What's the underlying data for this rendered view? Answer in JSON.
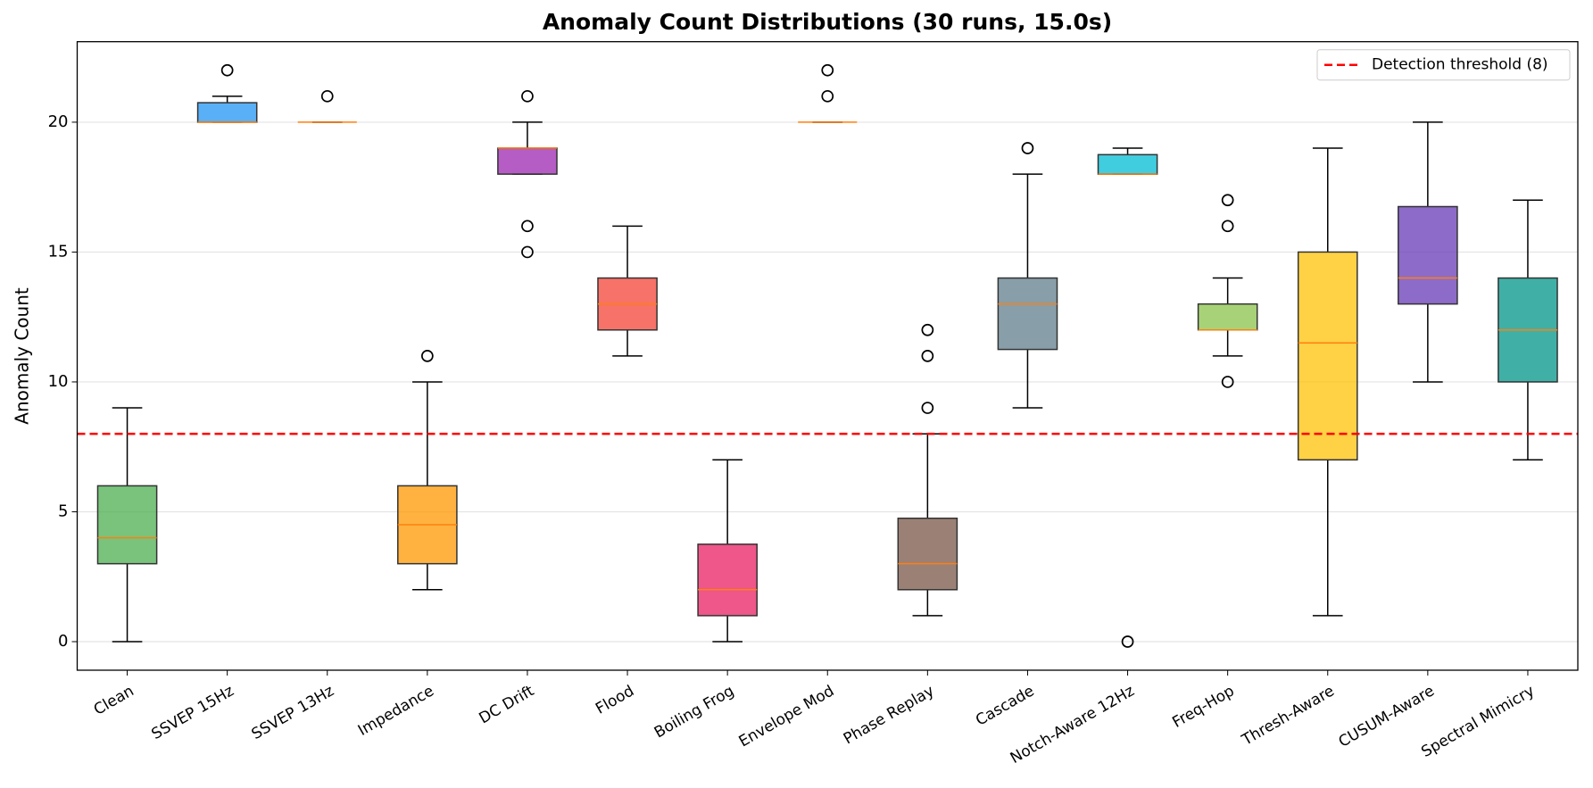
{
  "chart_data": {
    "type": "box",
    "title": "Anomaly Count Distributions (30 runs, 15.0s)",
    "y_label": "Anomaly Count",
    "categories": [
      "Clean",
      "SSVEP 15Hz",
      "SSVEP 13Hz",
      "Impedance",
      "DC Drift",
      "Flood",
      "Boiling Frog",
      "Envelope Mod",
      "Phase Replay",
      "Cascade",
      "Notch-Aware 12Hz",
      "Freq-Hop",
      "Thresh-Aware",
      "CUSUM-Aware",
      "Spectral Mimicry"
    ],
    "colors": [
      "#4caf50",
      "#2196f3",
      "#3f51b5",
      "#ff9800",
      "#9c27b0",
      "#f44336",
      "#e91e63",
      "#ff5722",
      "#795548",
      "#607d8b",
      "#00bcd4",
      "#8bc34a",
      "#ffc107",
      "#673ab7",
      "#009688"
    ],
    "boxes": [
      {
        "whislo": 0,
        "q1": 3,
        "med": 4,
        "q3": 6,
        "whishi": 9,
        "fliers": []
      },
      {
        "whislo": 20,
        "q1": 20,
        "med": 20,
        "q3": 20.75,
        "whishi": 21,
        "fliers": [
          22
        ]
      },
      {
        "whislo": 20,
        "q1": 20,
        "med": 20,
        "q3": 20,
        "whishi": 20,
        "fliers": [
          21
        ]
      },
      {
        "whislo": 2,
        "q1": 3,
        "med": 4.5,
        "q3": 6,
        "whishi": 10,
        "fliers": [
          11
        ]
      },
      {
        "whislo": 18,
        "q1": 18,
        "med": 19,
        "q3": 19,
        "whishi": 20,
        "fliers": [
          21,
          16,
          15
        ]
      },
      {
        "whislo": 11,
        "q1": 12,
        "med": 13,
        "q3": 14,
        "whishi": 16,
        "fliers": []
      },
      {
        "whislo": 0,
        "q1": 1,
        "med": 2,
        "q3": 3.75,
        "whishi": 7,
        "fliers": []
      },
      {
        "whislo": 20,
        "q1": 20,
        "med": 20,
        "q3": 20,
        "whishi": 20,
        "fliers": [
          21,
          22
        ]
      },
      {
        "whislo": 1,
        "q1": 2,
        "med": 3,
        "q3": 4.75,
        "whishi": 8,
        "fliers": [
          9,
          11,
          12
        ]
      },
      {
        "whislo": 9,
        "q1": 11.25,
        "med": 13,
        "q3": 14,
        "whishi": 18,
        "fliers": [
          19
        ]
      },
      {
        "whislo": 18,
        "q1": 18,
        "med": 18,
        "q3": 18.75,
        "whishi": 19,
        "fliers": [
          0
        ]
      },
      {
        "whislo": 11,
        "q1": 12,
        "med": 12,
        "q3": 13,
        "whishi": 14,
        "fliers": [
          10,
          16,
          17
        ]
      },
      {
        "whislo": 1,
        "q1": 7,
        "med": 11.5,
        "q3": 15,
        "whishi": 19,
        "fliers": []
      },
      {
        "whislo": 10,
        "q1": 13,
        "med": 14,
        "q3": 16.75,
        "whishi": 20,
        "fliers": []
      },
      {
        "whislo": 7,
        "q1": 10,
        "med": 12,
        "q3": 14,
        "whishi": 17,
        "fliers": []
      }
    ],
    "median_color": "#ff7f0e",
    "threshold": {
      "value": 8,
      "label": "Detection threshold (8)",
      "color": "#ff0000"
    },
    "ylim": [
      -1.1,
      23.1
    ],
    "yticks": [
      0,
      5,
      10,
      15,
      20
    ],
    "grid": true,
    "legend": "upper right"
  }
}
